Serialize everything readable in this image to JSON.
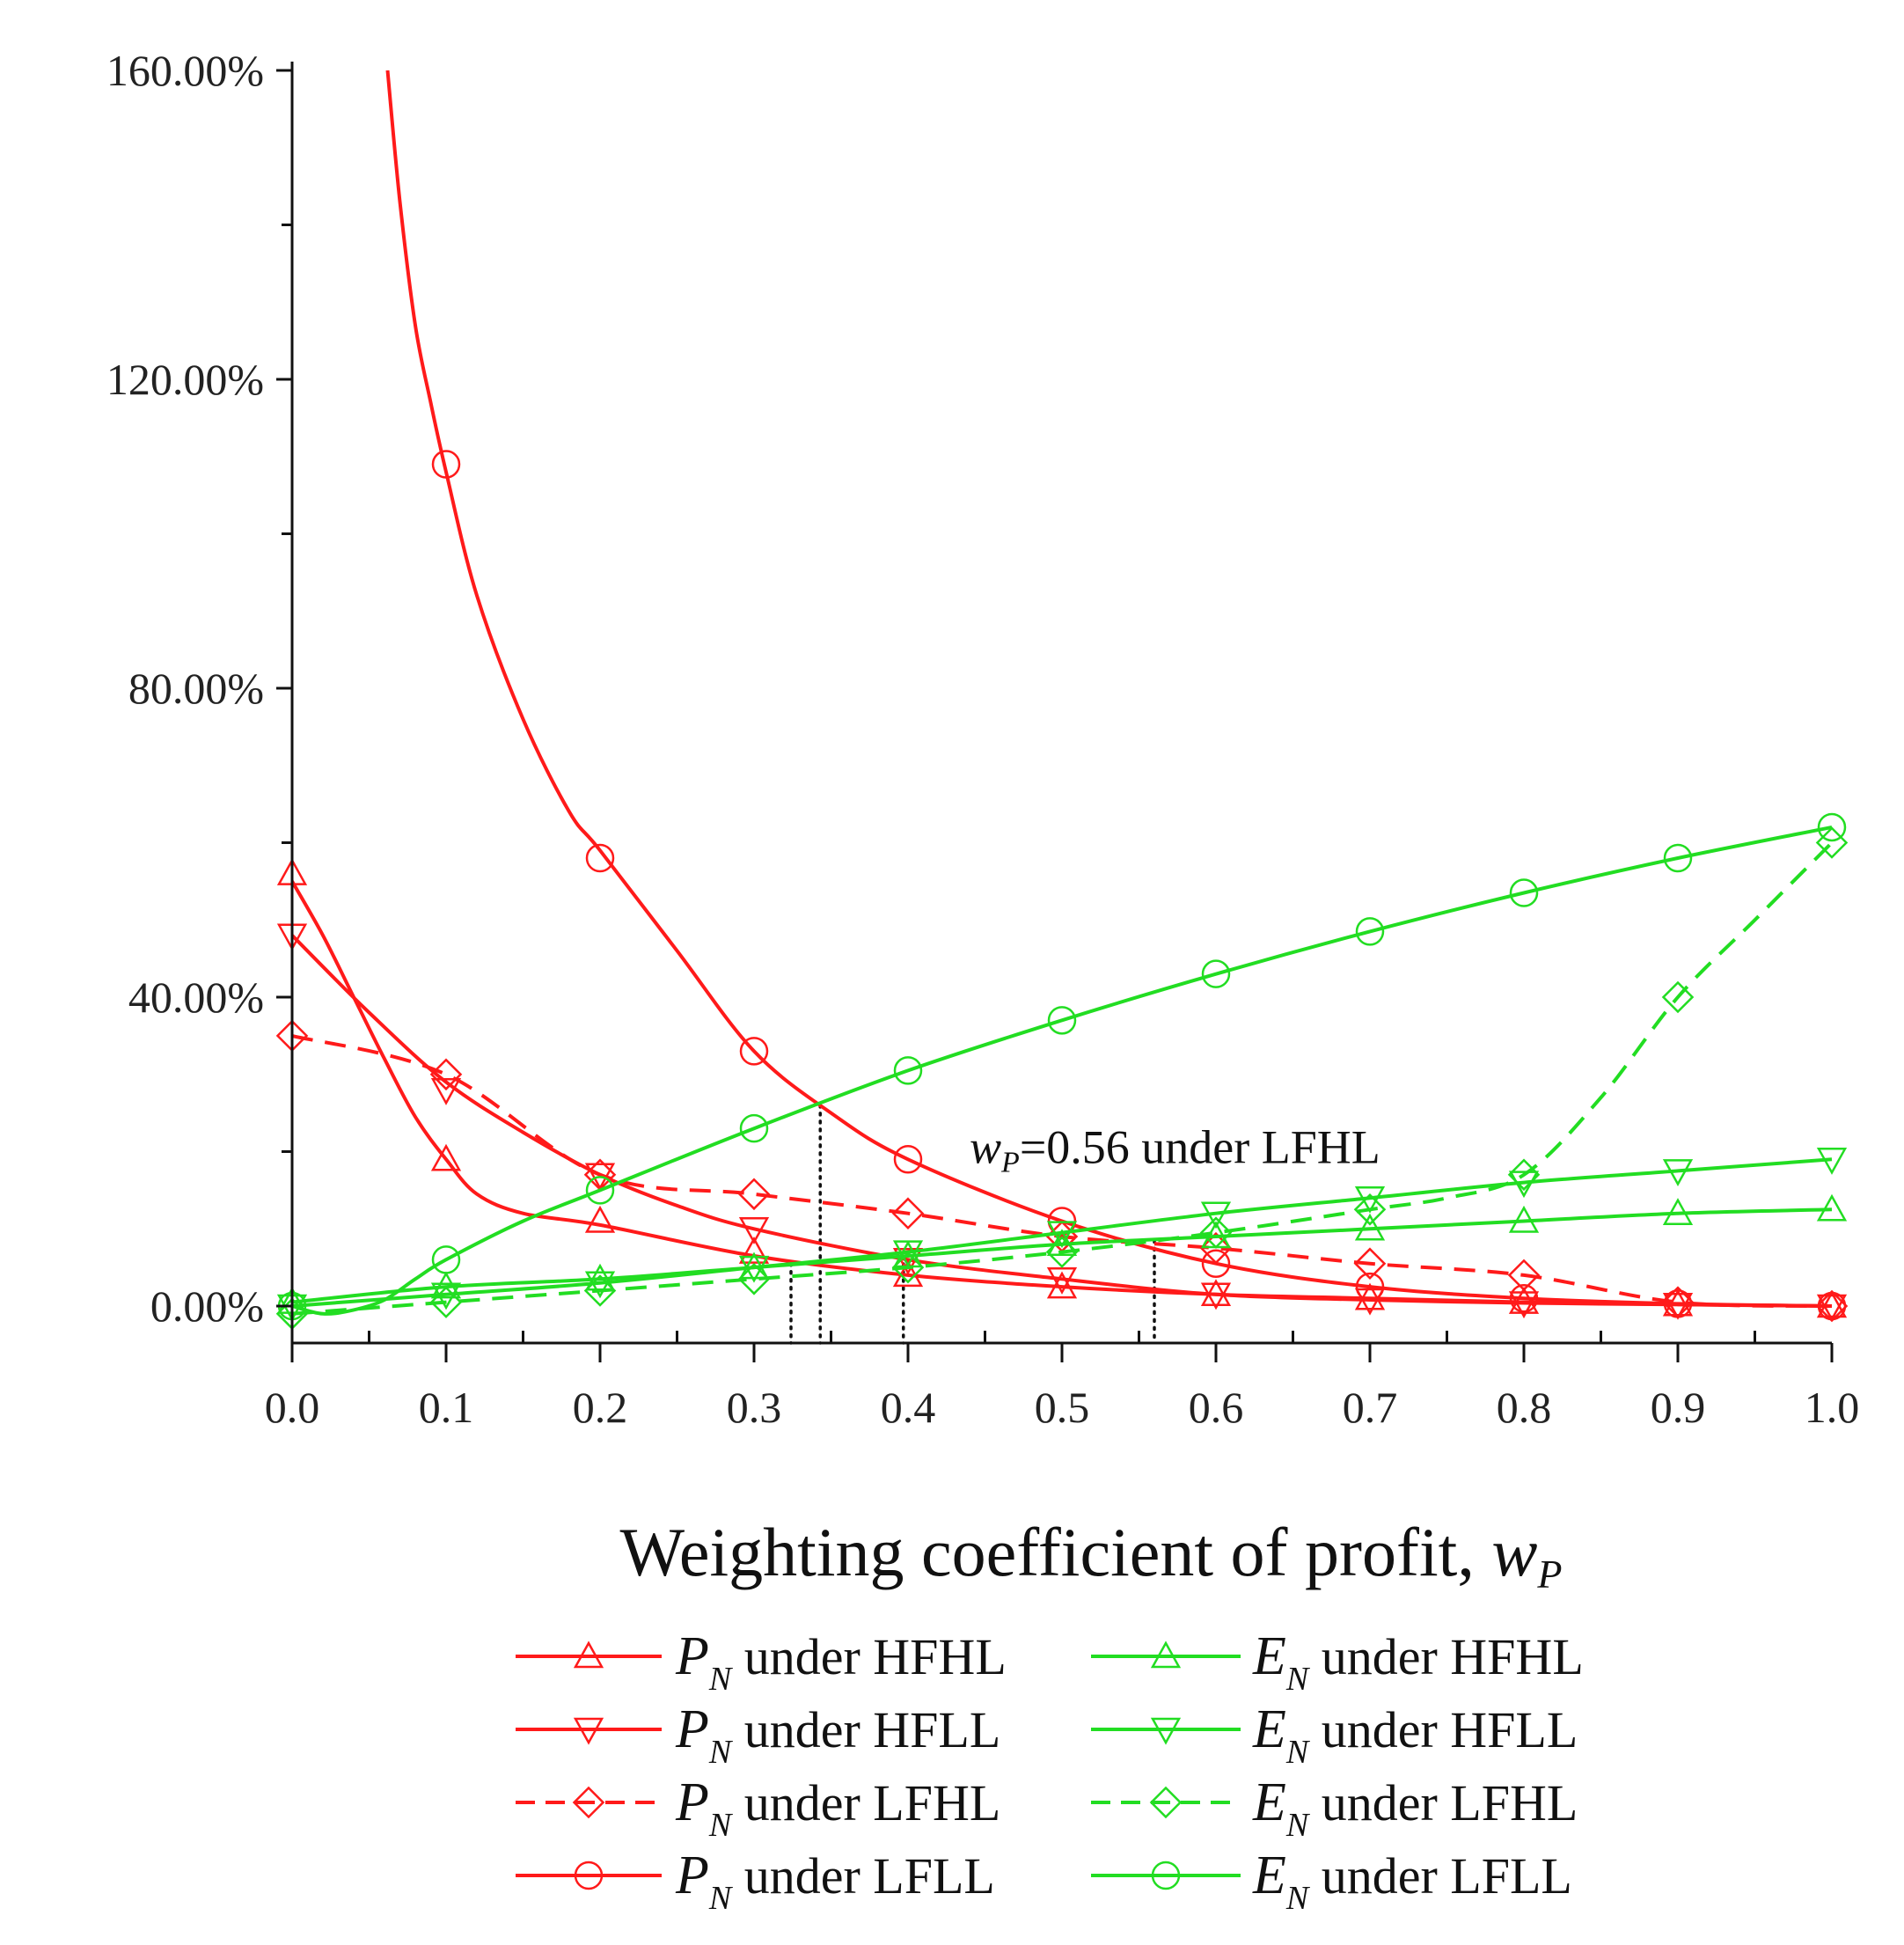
{
  "chart_data": {
    "type": "line",
    "title": "",
    "xlabel_text": "Weighting  coefficient of profit, ",
    "xlabel_symbol": "w",
    "xlabel_sub": "P",
    "ylabel": "",
    "xlim": [
      0,
      1
    ],
    "ylim": [
      -5,
      160
    ],
    "x_ticks": [
      0.0,
      0.1,
      0.2,
      0.3,
      0.4,
      0.5,
      0.6,
      0.7,
      0.8,
      0.9,
      1.0
    ],
    "x_tick_labels": [
      "0.0",
      "0.1",
      "0.2",
      "0.3",
      "0.4",
      "0.5",
      "0.6",
      "0.7",
      "0.8",
      "0.9",
      "1.0"
    ],
    "y_ticks": [
      0,
      40,
      80,
      120,
      160
    ],
    "y_tick_labels": [
      "0.00%",
      "40.00%",
      "80.00%",
      "120.00%",
      "160.00%"
    ],
    "y_minor_ticks": [
      20,
      60,
      100,
      140
    ],
    "colors": {
      "red": "#ff1a1a",
      "green": "#22dd22",
      "black": "#111111"
    },
    "series": [
      {
        "id": "pn-hfhl",
        "symbol": "P",
        "sub": "N",
        "label": " under HFHL",
        "color": "red",
        "dash": false,
        "marker": "triangle-up",
        "x": [
          0,
          0.1,
          0.2,
          0.3,
          0.4,
          0.5,
          0.6,
          0.7,
          0.8,
          0.9,
          1.0
        ],
        "y": [
          56,
          19,
          11,
          7,
          4,
          2.5,
          1.5,
          1,
          0.5,
          0.2,
          0
        ],
        "curve_x": [
          0,
          0.02,
          0.04,
          0.06,
          0.08,
          0.1,
          0.12,
          0.15,
          0.2,
          0.3,
          0.4,
          0.5,
          0.6,
          0.7,
          0.8,
          0.9,
          1.0
        ],
        "curve_y": [
          55,
          48,
          40,
          32,
          24.5,
          19,
          14.5,
          12,
          10.5,
          6.5,
          4,
          2.5,
          1.5,
          1,
          0.5,
          0.2,
          0
        ]
      },
      {
        "id": "pn-hfll",
        "symbol": "P",
        "sub": "N",
        "label": " under HFLL",
        "color": "red",
        "dash": false,
        "marker": "triangle-down",
        "x": [
          0,
          0.1,
          0.2,
          0.3,
          0.4,
          0.5,
          0.6,
          0.7,
          0.8,
          0.9,
          1.0
        ],
        "y": [
          48,
          28,
          17,
          10,
          6,
          3.5,
          1.5,
          0.8,
          0.4,
          0.2,
          0
        ],
        "curve_x": [
          0,
          0.05,
          0.1,
          0.15,
          0.2,
          0.25,
          0.3,
          0.4,
          0.5,
          0.6,
          0.7,
          0.8,
          0.9,
          1.0
        ],
        "curve_y": [
          48,
          38,
          29,
          22.5,
          17,
          13,
          10,
          6,
          3.5,
          1.5,
          0.8,
          0.4,
          0.2,
          0
        ]
      },
      {
        "id": "pn-lfhl",
        "symbol": "P",
        "sub": "N",
        "label": " under LFHL",
        "color": "red",
        "dash": true,
        "marker": "diamond",
        "x": [
          0,
          0.1,
          0.2,
          0.3,
          0.4,
          0.5,
          0.6,
          0.7,
          0.8,
          0.9,
          1.0
        ],
        "y": [
          35,
          30,
          17,
          14.5,
          12,
          9,
          7.5,
          5.5,
          4,
          0.5,
          0
        ],
        "curve_x": [
          0,
          0.1,
          0.2,
          0.3,
          0.4,
          0.5,
          0.6,
          0.7,
          0.8,
          0.9,
          1.0
        ],
        "curve_y": [
          35,
          30,
          17,
          14.5,
          12,
          9,
          7.5,
          5.5,
          4,
          0.5,
          0
        ]
      },
      {
        "id": "pn-lfll",
        "symbol": "P",
        "sub": "N",
        "label": " under LFLL",
        "color": "red",
        "dash": false,
        "marker": "circle",
        "x": [
          0.1,
          0.2,
          0.3,
          0.4,
          0.5,
          0.6,
          0.7,
          0.8,
          0.9,
          1.0
        ],
        "y": [
          109,
          58,
          33,
          19,
          11,
          5.5,
          2.5,
          1,
          0.3,
          0
        ],
        "curve_x": [
          0.062,
          0.07,
          0.08,
          0.09,
          0.1,
          0.12,
          0.15,
          0.18,
          0.2,
          0.25,
          0.3,
          0.35,
          0.4,
          0.5,
          0.6,
          0.7,
          0.8,
          0.9,
          1.0
        ],
        "curve_y": [
          160,
          143,
          127,
          117,
          108,
          92,
          76,
          64,
          59,
          46,
          33,
          25,
          19,
          11,
          5.5,
          2.5,
          1,
          0.3,
          0
        ]
      },
      {
        "id": "en-hfhl",
        "symbol": "E",
        "sub": "N",
        "label": " under HFHL",
        "color": "green",
        "dash": false,
        "marker": "triangle-up",
        "x": [
          0,
          0.1,
          0.2,
          0.3,
          0.4,
          0.5,
          0.6,
          0.7,
          0.8,
          0.9,
          1.0
        ],
        "y": [
          0.5,
          2.5,
          3.5,
          5,
          6.5,
          8,
          9,
          10,
          11,
          12,
          12.5
        ],
        "curve_x": [
          0,
          0.1,
          0.2,
          0.3,
          0.4,
          0.5,
          0.6,
          0.7,
          0.8,
          0.9,
          1.0
        ],
        "curve_y": [
          0.5,
          2.5,
          3.5,
          5,
          6.5,
          8,
          9,
          10,
          11,
          12,
          12.5
        ]
      },
      {
        "id": "en-hfll",
        "symbol": "E",
        "sub": "N",
        "label": " under HFLL",
        "color": "green",
        "dash": false,
        "marker": "triangle-down",
        "x": [
          0,
          0.1,
          0.2,
          0.3,
          0.4,
          0.5,
          0.6,
          0.7,
          0.8,
          0.9,
          1.0
        ],
        "y": [
          0,
          1.5,
          3,
          5,
          7,
          9.5,
          12,
          14,
          16,
          17.5,
          19
        ],
        "curve_x": [
          0,
          0.1,
          0.2,
          0.3,
          0.4,
          0.5,
          0.6,
          0.7,
          0.8,
          0.9,
          1.0
        ],
        "curve_y": [
          0,
          1.5,
          3,
          5,
          7,
          9.5,
          12,
          14,
          16,
          17.5,
          19
        ]
      },
      {
        "id": "en-lfhl",
        "symbol": "E",
        "sub": "N",
        "label": " under LFHL",
        "color": "green",
        "dash": true,
        "marker": "diamond",
        "x": [
          0,
          0.1,
          0.2,
          0.3,
          0.4,
          0.5,
          0.6,
          0.7,
          0.8,
          0.9,
          1.0
        ],
        "y": [
          -1,
          0.5,
          2,
          3.5,
          5,
          7,
          9.5,
          12.5,
          17,
          40,
          60
        ],
        "curve_x": [
          0,
          0.1,
          0.2,
          0.3,
          0.4,
          0.5,
          0.6,
          0.7,
          0.75,
          0.8,
          0.85,
          0.9,
          0.95,
          1.0
        ],
        "curve_y": [
          -1,
          0.5,
          2,
          3.5,
          5,
          7,
          9.5,
          12.5,
          14,
          17,
          27,
          40,
          50,
          60
        ]
      },
      {
        "id": "en-lfll",
        "symbol": "E",
        "sub": "N",
        "label": " under LFLL",
        "color": "green",
        "dash": false,
        "marker": "circle",
        "x": [
          0,
          0.1,
          0.2,
          0.3,
          0.4,
          0.5,
          0.6,
          0.7,
          0.8,
          0.9,
          1.0
        ],
        "y": [
          0,
          6,
          15,
          23,
          30.5,
          37,
          43,
          48.5,
          53.5,
          58,
          62
        ],
        "curve_x": [
          0,
          0.02,
          0.04,
          0.06,
          0.08,
          0.1,
          0.15,
          0.2,
          0.3,
          0.4,
          0.5,
          0.6,
          0.7,
          0.8,
          0.9,
          1.0
        ],
        "curve_y": [
          0,
          -1,
          -0.5,
          0.8,
          3.5,
          6,
          11,
          15,
          23,
          30.5,
          37,
          43,
          48.5,
          53.5,
          58,
          62
        ]
      }
    ],
    "guide_lines": [
      {
        "id": "guide-0324",
        "x": 0.324,
        "y": 5.5
      },
      {
        "id": "guide-0343",
        "x": 0.343,
        "y": 26
      },
      {
        "id": "guide-0397",
        "x": 0.397,
        "y": 6.5
      },
      {
        "id": "guide-0560",
        "x": 0.56,
        "y": 8.5
      }
    ],
    "annotation": {
      "symbol": "w",
      "sub": "P",
      "text": "=0.56  under LFHL",
      "x": 0.44,
      "y": 18.5
    }
  }
}
